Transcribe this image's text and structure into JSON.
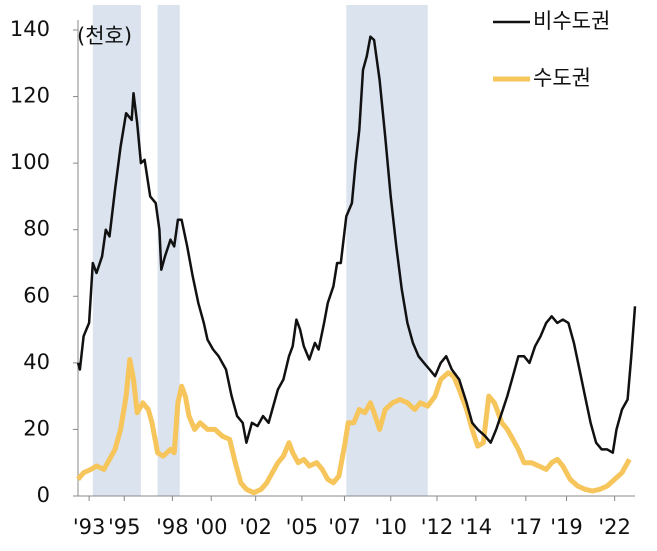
{
  "chart_data": {
    "type": "line",
    "annotation": "(천호)",
    "xlim": [
      1993,
      2023.1
    ],
    "ylim": [
      0,
      140
    ],
    "yticks": [
      0,
      20,
      40,
      60,
      80,
      100,
      120,
      140
    ],
    "xticks": [
      {
        "value": 1993.6,
        "label": "'93"
      },
      {
        "value": 1995.5,
        "label": "'95"
      },
      {
        "value": 1998.1,
        "label": "'98"
      },
      {
        "value": 2000.2,
        "label": "'00"
      },
      {
        "value": 2002.6,
        "label": "'02"
      },
      {
        "value": 2005.1,
        "label": "'05"
      },
      {
        "value": 2007.4,
        "label": "'07"
      },
      {
        "value": 2009.9,
        "label": "'10"
      },
      {
        "value": 2012.4,
        "label": "'12"
      },
      {
        "value": 2014.5,
        "label": "'14"
      },
      {
        "value": 2017.2,
        "label": "'17"
      },
      {
        "value": 2019.4,
        "label": "'19"
      },
      {
        "value": 2022.0,
        "label": "'22"
      }
    ],
    "shaded": [
      [
        1993.8,
        1996.4
      ],
      [
        1997.3,
        1998.5
      ],
      [
        2007.5,
        2011.9
      ]
    ],
    "shade_color": "#dbe3ef",
    "legend": "top-right",
    "series": [
      {
        "name": "비수도권",
        "color": "#111111",
        "x": [
          1993.0,
          1993.1,
          1993.3,
          1993.6,
          1993.8,
          1994.0,
          1994.3,
          1994.5,
          1994.7,
          1995.0,
          1995.3,
          1995.6,
          1995.9,
          1996.0,
          1996.2,
          1996.4,
          1996.6,
          1996.9,
          1997.2,
          1997.4,
          1997.5,
          1997.7,
          1998.0,
          1998.2,
          1998.4,
          1998.6,
          1998.9,
          1999.2,
          1999.5,
          1999.8,
          2000.0,
          2000.3,
          2000.6,
          2001.0,
          2001.3,
          2001.6,
          2001.9,
          2002.1,
          2002.4,
          2002.7,
          2003.0,
          2003.3,
          2003.5,
          2003.8,
          2004.1,
          2004.4,
          2004.6,
          2004.8,
          2005.0,
          2005.2,
          2005.5,
          2005.8,
          2006.0,
          2006.3,
          2006.5,
          2006.8,
          2007.0,
          2007.2,
          2007.5,
          2007.8,
          2008.0,
          2008.2,
          2008.4,
          2008.6,
          2008.8,
          2009.0,
          2009.3,
          2009.6,
          2009.9,
          2010.2,
          2010.5,
          2010.8,
          2011.1,
          2011.4,
          2011.7,
          2012.0,
          2012.3,
          2012.6,
          2012.9,
          2013.2,
          2013.6,
          2014.0,
          2014.3,
          2014.6,
          2015.0,
          2015.3,
          2015.6,
          2015.9,
          2016.2,
          2016.5,
          2016.8,
          2017.1,
          2017.4,
          2017.7,
          2018.0,
          2018.3,
          2018.6,
          2018.9,
          2019.2,
          2019.5,
          2019.8,
          2020.1,
          2020.4,
          2020.7,
          2021.0,
          2021.3,
          2021.6,
          2021.9,
          2022.1,
          2022.4,
          2022.7,
          2022.9,
          2023.1
        ],
        "values": [
          40,
          38,
          48,
          52,
          70,
          67,
          72,
          80,
          78,
          92,
          105,
          115,
          113,
          121,
          112,
          100,
          101,
          90,
          88,
          80,
          68,
          72,
          77,
          75,
          83,
          83,
          75,
          66,
          58,
          52,
          47,
          44,
          42,
          38,
          30,
          24,
          22,
          16,
          22,
          21,
          24,
          22,
          26,
          32,
          35,
          42,
          45,
          53,
          50,
          45,
          41,
          46,
          44,
          52,
          58,
          63,
          70,
          70,
          84,
          88,
          100,
          110,
          128,
          132,
          138,
          137,
          125,
          108,
          90,
          75,
          62,
          52,
          46,
          42,
          40,
          38,
          36,
          40,
          42,
          38,
          35,
          28,
          22,
          20,
          18,
          16,
          20,
          25,
          30,
          36,
          42,
          42,
          40,
          45,
          48,
          52,
          54,
          52,
          53,
          52,
          46,
          38,
          30,
          22,
          16,
          14,
          14,
          13,
          20,
          26,
          29,
          42,
          57
        ]
      },
      {
        "name": "수도권",
        "color": "#f6c55c",
        "x": [
          1993.0,
          1993.3,
          1993.7,
          1994.0,
          1994.4,
          1994.7,
          1995.0,
          1995.3,
          1995.6,
          1995.8,
          1996.0,
          1996.2,
          1996.5,
          1996.8,
          1997.0,
          1997.3,
          1997.6,
          1998.0,
          1998.2,
          1998.4,
          1998.6,
          1998.8,
          1999.0,
          1999.3,
          1999.6,
          2000.0,
          2000.4,
          2000.8,
          2001.2,
          2001.5,
          2001.8,
          2002.1,
          2002.5,
          2002.9,
          2003.2,
          2003.5,
          2003.8,
          2004.1,
          2004.4,
          2004.6,
          2004.9,
          2005.2,
          2005.5,
          2005.9,
          2006.2,
          2006.5,
          2006.8,
          2007.1,
          2007.4,
          2007.6,
          2007.9,
          2008.2,
          2008.5,
          2008.8,
          2009.0,
          2009.3,
          2009.6,
          2010.0,
          2010.4,
          2010.8,
          2011.2,
          2011.5,
          2011.9,
          2012.3,
          2012.6,
          2013.0,
          2013.3,
          2013.6,
          2014.0,
          2014.3,
          2014.6,
          2014.9,
          2015.2,
          2015.5,
          2015.9,
          2016.2,
          2016.5,
          2016.8,
          2017.1,
          2017.5,
          2017.9,
          2018.3,
          2018.6,
          2018.9,
          2019.2,
          2019.6,
          2020.0,
          2020.4,
          2020.8,
          2021.2,
          2021.6,
          2022.0,
          2022.4,
          2022.8
        ],
        "values": [
          5,
          7,
          8,
          9,
          8,
          11,
          14,
          20,
          30,
          41,
          35,
          25,
          28,
          26,
          22,
          13,
          12,
          14,
          13,
          28,
          33,
          30,
          24,
          20,
          22,
          20,
          20,
          18,
          17,
          10,
          4,
          2,
          1,
          2,
          4,
          7,
          10,
          12,
          16,
          13,
          10,
          11,
          9,
          10,
          8,
          5,
          4,
          6,
          15,
          22,
          22,
          26,
          25,
          28,
          25,
          20,
          26,
          28,
          29,
          28,
          26,
          28,
          27,
          30,
          35,
          37,
          36,
          32,
          26,
          20,
          15,
          16,
          30,
          28,
          22,
          20,
          17,
          14,
          10,
          10,
          9,
          8,
          10,
          11,
          9,
          5,
          3,
          2,
          1.5,
          2,
          3,
          5,
          7,
          11
        ]
      }
    ]
  }
}
